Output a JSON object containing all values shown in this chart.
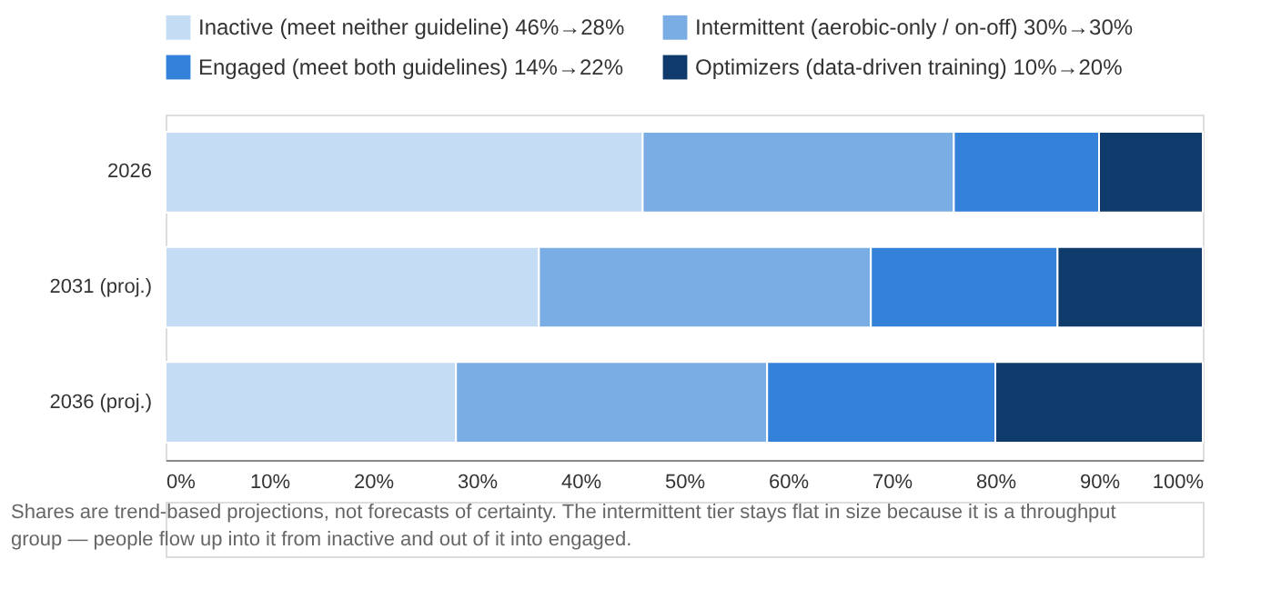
{
  "chart_data": {
    "type": "bar",
    "orientation": "horizontal",
    "stacked": true,
    "categories": [
      "2026",
      "2031 (proj.)",
      "2036 (proj.)"
    ],
    "series": [
      {
        "name": "Inactive (meet neither guideline) 46%→28%",
        "color": "#c5dcf5",
        "values": [
          46,
          36,
          28
        ]
      },
      {
        "name": "Intermittent (aerobic-only / on-off) 30%→30%",
        "color": "#7badE5",
        "values": [
          30,
          32,
          30
        ]
      },
      {
        "name": "Engaged (meet both guidelines) 14%→22%",
        "color": "#3481da",
        "values": [
          14,
          18,
          22
        ]
      },
      {
        "name": "Optimizers (data-driven training) 10%→20%",
        "color": "#0f3a6c",
        "values": [
          10,
          14,
          20
        ]
      }
    ],
    "xlim": [
      0,
      100
    ],
    "xticks": [
      {
        "value": 0,
        "label": "0%"
      },
      {
        "value": 10,
        "label": "10%"
      },
      {
        "value": 20,
        "label": "20%"
      },
      {
        "value": 30,
        "label": "30%"
      },
      {
        "value": 40,
        "label": "40%"
      },
      {
        "value": 50,
        "label": "50%"
      },
      {
        "value": 60,
        "label": "60%"
      },
      {
        "value": 70,
        "label": "70%"
      },
      {
        "value": 80,
        "label": "80%"
      },
      {
        "value": 90,
        "label": "90%"
      },
      {
        "value": 100,
        "label": "100%"
      }
    ],
    "grid": false,
    "legend": "top",
    "annotations": [
      "Shares are trend-based projections, not forecasts of certainty. The intermittent tier stays flat in size because it is a throughput group — people flow up into it from inactive and out of it into engaged."
    ]
  }
}
